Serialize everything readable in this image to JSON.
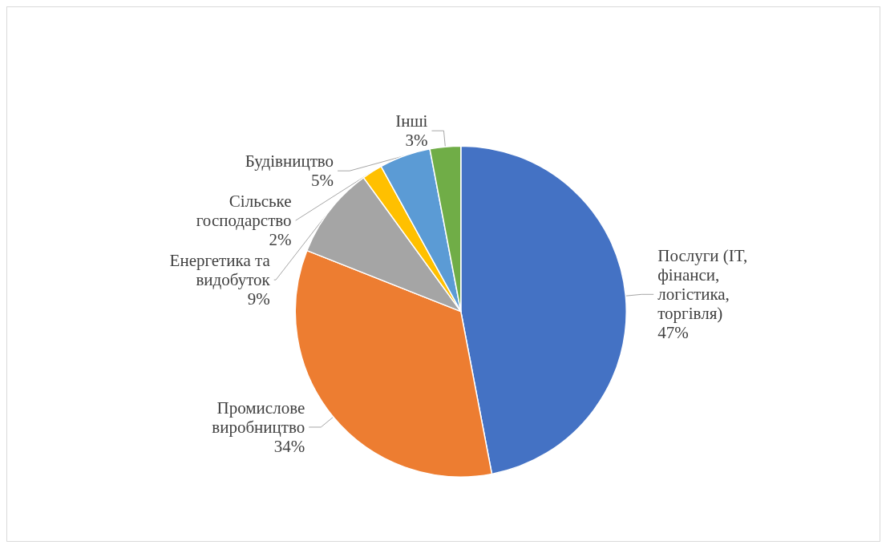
{
  "chart_data": {
    "type": "pie",
    "categories": [
      "Послуги (IT, фінанси, логістика, торгівля)",
      "Промислове виробництво",
      "Енергетика та видобуток",
      "Сільське господарство",
      "Будівництво",
      "Інші"
    ],
    "values": [
      47,
      34,
      9,
      2,
      5,
      3
    ],
    "value_labels": [
      "47%",
      "34%",
      "9%",
      "2%",
      "5%",
      "3%"
    ],
    "colors": [
      "#4472c4",
      "#ed7d31",
      "#a5a5a5",
      "#ffc000",
      "#5b9bd5",
      "#70ad47"
    ],
    "legend": false
  }
}
